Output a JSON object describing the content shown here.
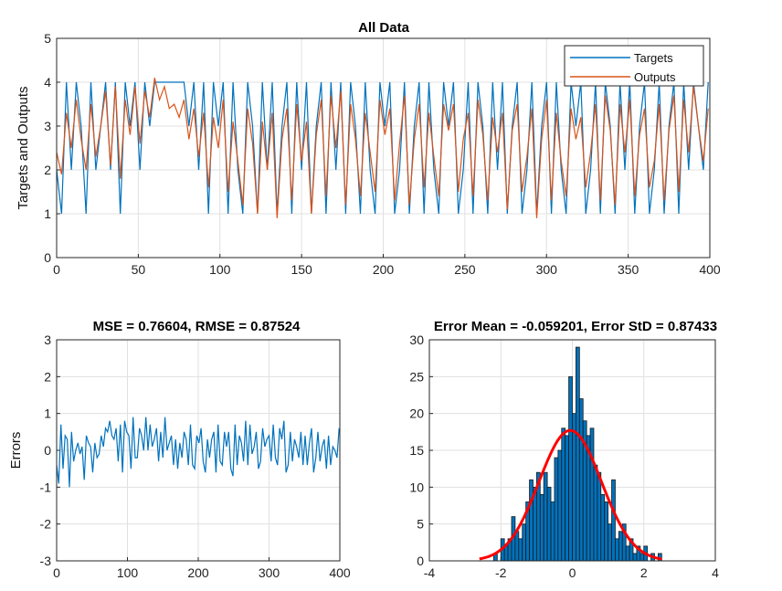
{
  "colors": {
    "targets": "#0072BD",
    "outputs": "#D95319",
    "errors": "#0072BD",
    "hist_bar": "#0072BD",
    "hist_edge": "#1a1a1a",
    "normal_fit": "#FF0000"
  },
  "chart_data": [
    {
      "id": "all_data",
      "type": "line",
      "title": "All Data",
      "ylabel": "Targets and Outputs",
      "xlabel": "",
      "xlim": [
        0,
        400
      ],
      "ylim": [
        0,
        5
      ],
      "xticks": [
        0,
        50,
        100,
        150,
        200,
        250,
        300,
        350,
        400
      ],
      "yticks": [
        0,
        1,
        2,
        3,
        4,
        5
      ],
      "grid": true,
      "legend_position": "top-right",
      "series": [
        {
          "name": "Targets",
          "x": [
            0,
            3,
            6,
            9,
            12,
            15,
            18,
            21,
            24,
            27,
            30,
            33,
            36,
            39,
            42,
            45,
            48,
            51,
            54,
            57,
            60,
            63,
            66,
            69,
            72,
            75,
            78,
            81,
            84,
            87,
            90,
            93,
            96,
            99,
            102,
            105,
            108,
            111,
            114,
            117,
            120,
            123,
            126,
            129,
            132,
            135,
            138,
            141,
            144,
            147,
            150,
            153,
            156,
            159,
            162,
            165,
            168,
            171,
            174,
            177,
            180,
            183,
            186,
            189,
            192,
            195,
            198,
            201,
            204,
            207,
            210,
            213,
            216,
            219,
            222,
            225,
            228,
            231,
            234,
            237,
            240,
            243,
            246,
            249,
            252,
            255,
            258,
            261,
            264,
            267,
            270,
            273,
            276,
            279,
            282,
            285,
            288,
            291,
            294,
            297,
            300,
            303,
            306,
            309,
            312,
            315,
            318,
            321,
            324,
            327,
            330,
            333,
            336,
            339,
            342,
            345,
            348,
            351,
            354,
            357,
            360,
            363,
            366,
            369,
            372,
            375,
            378,
            381,
            384,
            387,
            390,
            393,
            396,
            399
          ],
          "values": [
            2,
            1,
            4,
            2,
            4,
            3,
            1,
            4,
            2,
            3,
            4,
            2,
            4,
            1,
            4,
            3,
            4,
            2,
            4,
            3,
            4,
            4,
            4,
            4,
            4,
            4,
            4,
            3,
            4,
            2,
            4,
            1,
            4,
            3,
            4,
            1,
            4,
            2,
            1,
            4,
            3,
            1,
            4,
            2,
            4,
            1,
            3,
            4,
            1,
            4,
            2,
            4,
            1,
            3,
            4,
            1,
            4,
            2,
            4,
            1,
            4,
            3,
            1,
            4,
            2,
            1,
            4,
            3,
            4,
            1,
            2,
            4,
            1,
            3,
            4,
            1,
            4,
            2,
            1,
            4,
            3,
            4,
            1,
            2,
            4,
            1,
            4,
            3,
            1,
            4,
            2,
            4,
            1,
            3,
            4,
            1,
            2,
            4,
            1,
            3,
            4,
            1,
            4,
            2,
            1,
            4,
            3,
            4,
            1,
            2,
            4,
            1,
            4,
            3,
            1,
            4,
            2,
            4,
            1,
            3,
            4,
            1,
            2,
            4,
            1,
            3,
            4,
            1,
            4,
            2,
            4,
            3,
            2,
            4
          ]
        },
        {
          "name": "Outputs",
          "x": [
            0,
            3,
            6,
            9,
            12,
            15,
            18,
            21,
            24,
            27,
            30,
            33,
            36,
            39,
            42,
            45,
            48,
            51,
            54,
            57,
            60,
            63,
            66,
            69,
            72,
            75,
            78,
            81,
            84,
            87,
            90,
            93,
            96,
            99,
            102,
            105,
            108,
            111,
            114,
            117,
            120,
            123,
            126,
            129,
            132,
            135,
            138,
            141,
            144,
            147,
            150,
            153,
            156,
            159,
            162,
            165,
            168,
            171,
            174,
            177,
            180,
            183,
            186,
            189,
            192,
            195,
            198,
            201,
            204,
            207,
            210,
            213,
            216,
            219,
            222,
            225,
            228,
            231,
            234,
            237,
            240,
            243,
            246,
            249,
            252,
            255,
            258,
            261,
            264,
            267,
            270,
            273,
            276,
            279,
            282,
            285,
            288,
            291,
            294,
            297,
            300,
            303,
            306,
            309,
            312,
            315,
            318,
            321,
            324,
            327,
            330,
            333,
            336,
            339,
            342,
            345,
            348,
            351,
            354,
            357,
            360,
            363,
            366,
            369,
            372,
            375,
            378,
            381,
            384,
            387,
            390,
            393,
            396,
            399
          ],
          "values": [
            2.4,
            1.9,
            3.3,
            2.5,
            3.6,
            2.7,
            2.0,
            3.5,
            2.3,
            3.0,
            3.8,
            2.1,
            3.9,
            1.8,
            3.6,
            2.8,
            3.9,
            2.6,
            3.8,
            3.2,
            4.1,
            3.6,
            3.9,
            3.4,
            3.5,
            3.2,
            3.6,
            2.7,
            3.4,
            2.3,
            3.3,
            1.6,
            3.2,
            2.5,
            3.6,
            1.5,
            3.1,
            2.2,
            1.2,
            3.4,
            2.6,
            1.0,
            3.1,
            2.0,
            3.3,
            0.9,
            2.7,
            3.4,
            1.3,
            3.5,
            2.2,
            3.1,
            1.0,
            2.8,
            3.6,
            1.4,
            3.7,
            2.5,
            3.8,
            1.2,
            3.5,
            2.7,
            1.4,
            3.3,
            2.4,
            1.5,
            3.6,
            2.8,
            3.4,
            1.3,
            2.6,
            3.7,
            1.2,
            2.7,
            3.5,
            1.6,
            3.3,
            2.3,
            1.4,
            3.5,
            2.9,
            3.5,
            1.5,
            2.7,
            3.3,
            1.4,
            3.6,
            2.8,
            1.3,
            3.2,
            2.4,
            3.3,
            1.1,
            2.9,
            3.5,
            1.5,
            2.3,
            3.4,
            0.9,
            2.7,
            3.6,
            1.3,
            3.3,
            2.2,
            1.4,
            3.4,
            2.7,
            3.2,
            1.6,
            2.4,
            3.5,
            1.3,
            3.7,
            2.9,
            1.2,
            3.5,
            2.4,
            3.6,
            1.4,
            2.8,
            3.4,
            1.6,
            2.2,
            3.5,
            1.3,
            2.9,
            3.7,
            1.5,
            3.6,
            2.4,
            3.9,
            3.0,
            2.2,
            3.4
          ]
        }
      ]
    },
    {
      "id": "errors",
      "type": "line",
      "title": "MSE = 0.76604, RMSE = 0.87524",
      "ylabel": "Errors",
      "xlabel": "",
      "xlim": [
        0,
        400
      ],
      "ylim": [
        -3,
        3
      ],
      "xticks": [
        0,
        100,
        200,
        300,
        400
      ],
      "yticks": [
        -3,
        -2,
        -1,
        0,
        1,
        2,
        3
      ],
      "grid": true,
      "series": [
        {
          "x": [
            0,
            3,
            6,
            9,
            12,
            15,
            18,
            21,
            24,
            27,
            30,
            33,
            36,
            39,
            42,
            45,
            48,
            51,
            54,
            57,
            60,
            63,
            66,
            69,
            72,
            75,
            78,
            81,
            84,
            87,
            90,
            93,
            96,
            99,
            102,
            105,
            108,
            111,
            114,
            117,
            120,
            123,
            126,
            129,
            132,
            135,
            138,
            141,
            144,
            147,
            150,
            153,
            156,
            159,
            162,
            165,
            168,
            171,
            174,
            177,
            180,
            183,
            186,
            189,
            192,
            195,
            198,
            201,
            204,
            207,
            210,
            213,
            216,
            219,
            222,
            225,
            228,
            231,
            234,
            237,
            240,
            243,
            246,
            249,
            252,
            255,
            258,
            261,
            264,
            267,
            270,
            273,
            276,
            279,
            282,
            285,
            288,
            291,
            294,
            297,
            300,
            303,
            306,
            309,
            312,
            315,
            318,
            321,
            324,
            327,
            330,
            333,
            336,
            339,
            342,
            345,
            348,
            351,
            354,
            357,
            360,
            363,
            366,
            369,
            372,
            375,
            378,
            381,
            384,
            387,
            390,
            393,
            396,
            399
          ],
          "values": [
            -0.4,
            -0.9,
            0.7,
            -0.5,
            0.4,
            0.3,
            -1.0,
            0.5,
            -0.3,
            0.0,
            0.2,
            -0.1,
            0.1,
            -0.8,
            0.4,
            0.2,
            0.1,
            -0.6,
            0.2,
            -0.2,
            -0.1,
            0.4,
            0.1,
            0.6,
            0.5,
            0.8,
            0.4,
            0.3,
            0.6,
            -0.3,
            0.7,
            -0.6,
            0.8,
            0.5,
            0.4,
            -0.5,
            0.9,
            -0.2,
            -0.2,
            0.6,
            0.4,
            0.0,
            0.9,
            0.0,
            0.7,
            0.1,
            0.3,
            0.6,
            -0.3,
            0.5,
            -0.2,
            0.9,
            0.0,
            0.2,
            0.4,
            -0.4,
            0.3,
            -0.5,
            0.2,
            -0.2,
            0.5,
            0.3,
            -0.4,
            0.7,
            -0.4,
            -0.5,
            0.4,
            0.2,
            0.6,
            -0.3,
            -0.6,
            0.3,
            -0.2,
            0.3,
            0.5,
            -0.6,
            0.7,
            -0.3,
            -0.4,
            0.5,
            0.1,
            0.5,
            -0.5,
            -0.7,
            0.7,
            -0.4,
            0.4,
            0.2,
            -0.3,
            0.8,
            -0.4,
            0.7,
            -0.1,
            0.1,
            0.5,
            -0.5,
            -0.3,
            0.6,
            0.1,
            0.3,
            0.4,
            -0.3,
            0.7,
            -0.2,
            -0.4,
            0.6,
            0.3,
            0.8,
            -0.6,
            -0.4,
            0.5,
            -0.3,
            0.3,
            0.1,
            -0.2,
            0.5,
            -0.4,
            0.4,
            -0.4,
            0.2,
            0.6,
            -0.6,
            -0.2,
            0.5,
            -0.3,
            0.1,
            0.3,
            -0.5,
            0.4,
            -0.4,
            0.1,
            0.0,
            -0.2,
            0.6
          ]
        }
      ]
    },
    {
      "id": "error_hist",
      "type": "bar",
      "title": "Error Mean = -0.059201, Error StD = 0.87433",
      "ylabel": "",
      "xlabel": "",
      "xlim": [
        -4,
        4
      ],
      "ylim": [
        0,
        30
      ],
      "xticks": [
        -4,
        -2,
        0,
        2,
        4
      ],
      "yticks": [
        0,
        5,
        10,
        15,
        20,
        25,
        30
      ],
      "grid": true,
      "bin_width": 0.1,
      "bin_centers": [
        -2.55,
        -2.45,
        -2.35,
        -2.25,
        -2.15,
        -2.05,
        -1.95,
        -1.85,
        -1.75,
        -1.65,
        -1.55,
        -1.45,
        -1.35,
        -1.25,
        -1.15,
        -1.05,
        -0.95,
        -0.85,
        -0.75,
        -0.65,
        -0.55,
        -0.45,
        -0.35,
        -0.25,
        -0.15,
        -0.05,
        0.05,
        0.15,
        0.25,
        0.35,
        0.45,
        0.55,
        0.65,
        0.75,
        0.85,
        0.95,
        1.05,
        1.15,
        1.25,
        1.35,
        1.45,
        1.55,
        1.65,
        1.75,
        1.85,
        1.95,
        2.05,
        2.15,
        2.25,
        2.35,
        2.45
      ],
      "counts": [
        0,
        0,
        0,
        0,
        1,
        0,
        3,
        2,
        3,
        6,
        4,
        3,
        5,
        8,
        11,
        10,
        12,
        9,
        12,
        10,
        8,
        14,
        15,
        18,
        17,
        25,
        20,
        29,
        22,
        19,
        17,
        18,
        13,
        12,
        9,
        8,
        5,
        11,
        3,
        4,
        5,
        2,
        3,
        1,
        2,
        1,
        2,
        0,
        1,
        0,
        1
      ],
      "fit": {
        "type": "normal",
        "mean": -0.059201,
        "std": 0.87433,
        "peak": 17.7
      }
    }
  ]
}
